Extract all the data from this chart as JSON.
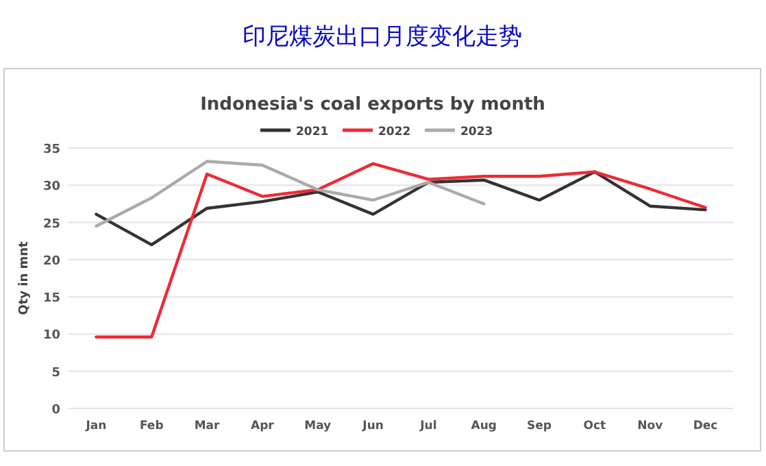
{
  "chart_data": {
    "type": "line",
    "title": "印尼煤炭出口月度变化走势",
    "subtitle": "Indonesia's coal exports by month",
    "ylabel": "Qty in mnt",
    "categories": [
      "Jan",
      "Feb",
      "Mar",
      "Apr",
      "May",
      "Jun",
      "Jul",
      "Aug",
      "Sep",
      "Oct",
      "Nov",
      "Dec"
    ],
    "series": [
      {
        "name": "2021",
        "color": "#333333",
        "values": [
          26.1,
          22.0,
          26.9,
          27.8,
          29.1,
          26.1,
          30.4,
          30.7,
          28.0,
          31.8,
          27.2,
          26.7
        ]
      },
      {
        "name": "2022",
        "color": "#ee2a35",
        "values": [
          9.6,
          9.6,
          31.5,
          28.5,
          29.4,
          32.9,
          30.8,
          31.2,
          31.2,
          31.8,
          29.5,
          27.0
        ]
      },
      {
        "name": "2023",
        "color": "#aaaaaa",
        "values": [
          24.5,
          28.3,
          33.2,
          32.7,
          29.4,
          28.0,
          30.4,
          27.5,
          null,
          null,
          null,
          null
        ]
      }
    ],
    "ylim": [
      0,
      35
    ],
    "yticks": [
      0,
      5,
      10,
      15,
      20,
      25,
      30,
      35
    ],
    "grid": "y",
    "legend": "top",
    "marker": "none",
    "line_style": "solid"
  }
}
